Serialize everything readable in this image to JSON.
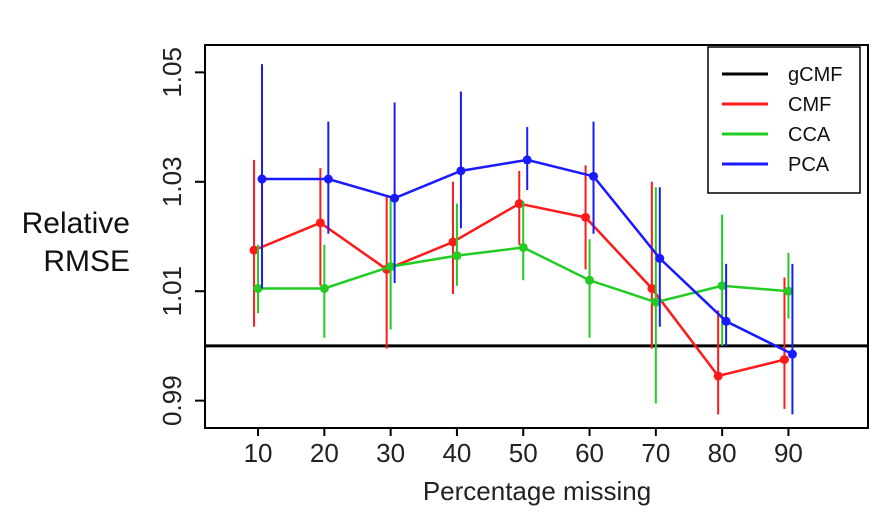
{
  "chart_data": {
    "type": "line",
    "xlabel": "Percentage missing",
    "ylabel_lines": [
      "Relative",
      "RMSE"
    ],
    "x": [
      10,
      20,
      30,
      40,
      50,
      60,
      70,
      80,
      90
    ],
    "xticks": [
      "10",
      "20",
      "30",
      "40",
      "50",
      "60",
      "70",
      "80",
      "90"
    ],
    "yticks": [
      "0.99",
      "1.01",
      "1.03",
      "1.05"
    ],
    "ytick_values": [
      0.99,
      1.01,
      1.03,
      1.05
    ],
    "ylim": [
      0.985,
      1.055
    ],
    "xlim": [
      2,
      102
    ],
    "grid": false,
    "legend_position": "top-right",
    "reference_line": {
      "name": "gCMF",
      "value": 1.0,
      "color": "#000000"
    },
    "series": [
      {
        "name": "gCMF",
        "color": "#000000",
        "is_reference": true
      },
      {
        "name": "CMF",
        "color": "#ff1a1a",
        "offset": -0.6,
        "values": [
          1.0175,
          1.0225,
          1.014,
          1.019,
          1.026,
          1.0235,
          1.0105,
          0.9945,
          0.9975
        ],
        "err_low": [
          1.0035,
          1.011,
          0.9995,
          1.0095,
          1.0185,
          1.014,
          0.9995,
          0.9875,
          0.9885
        ],
        "err_high": [
          1.034,
          1.0325,
          1.0275,
          1.03,
          1.032,
          1.033,
          1.03,
          1.0065,
          1.0125
        ]
      },
      {
        "name": "CCA",
        "color": "#22cc22",
        "offset": 0.0,
        "values": [
          1.0105,
          1.0105,
          1.0145,
          1.0165,
          1.018,
          1.012,
          1.008,
          1.011,
          1.01
        ],
        "err_low": [
          1.006,
          1.0015,
          1.003,
          1.011,
          1.012,
          1.0015,
          0.9895,
          1.0,
          1.005
        ],
        "err_high": [
          1.0185,
          1.0185,
          1.027,
          1.026,
          1.0265,
          1.0195,
          1.029,
          1.024,
          1.017
        ]
      },
      {
        "name": "PCA",
        "color": "#1a1aff",
        "offset": 0.6,
        "values": [
          1.0305,
          1.0305,
          1.027,
          1.032,
          1.034,
          1.031,
          1.016,
          1.0045,
          0.9985
        ],
        "err_low": [
          1.0105,
          1.0205,
          1.0115,
          1.0215,
          1.0285,
          1.0205,
          1.0035,
          1.0,
          0.9875
        ],
        "err_high": [
          1.0515,
          1.041,
          1.0445,
          1.0465,
          1.04,
          1.041,
          1.029,
          1.015,
          1.015
        ]
      }
    ]
  }
}
